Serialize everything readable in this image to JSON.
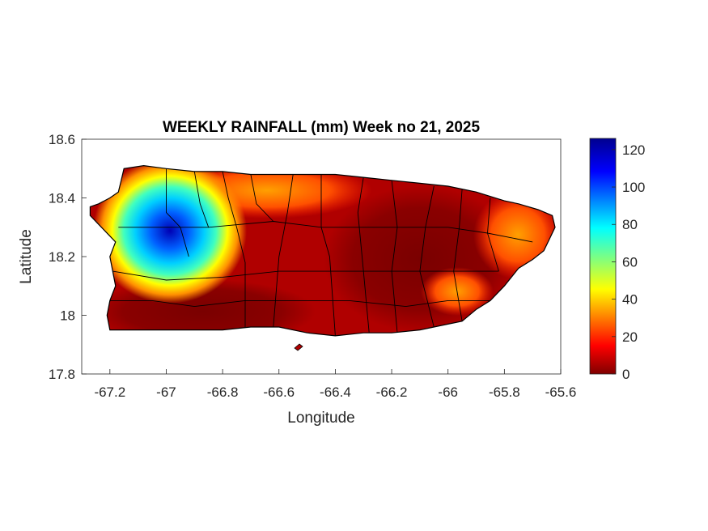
{
  "figure": {
    "title": "WEEKLY RAINFALL (mm) Week no 21, 2025",
    "xlabel": "Longitude",
    "ylabel": "Latitude"
  },
  "map_data": {
    "type": "contour-map",
    "region": "Puerto Rico",
    "quantity": "weekly rainfall (mm)",
    "x_range": [
      -67.3,
      -65.6
    ],
    "y_range": [
      17.8,
      18.6
    ],
    "x_ticks": [
      "-67.2",
      "-67",
      "-66.8",
      "-66.6",
      "-66.4",
      "-66.2",
      "-66",
      "-65.8",
      "-65.6"
    ],
    "y_ticks": [
      "18.6",
      "18.4",
      "18.2",
      "18"
    ],
    "y_tick_bottom": "17.8",
    "colorbar": {
      "range": [
        0,
        126
      ],
      "ticks": [
        "120",
        "100",
        "80",
        "60",
        "40",
        "20",
        "0"
      ],
      "colormap": "jet"
    },
    "coastline": [
      [
        -67.27,
        18.37
      ],
      [
        -67.24,
        18.38
      ],
      [
        -67.2,
        18.4
      ],
      [
        -67.17,
        18.42
      ],
      [
        -67.16,
        18.46
      ],
      [
        -67.15,
        18.5
      ],
      [
        -67.08,
        18.51
      ],
      [
        -67.0,
        18.5
      ],
      [
        -66.9,
        18.49
      ],
      [
        -66.8,
        18.49
      ],
      [
        -66.7,
        18.48
      ],
      [
        -66.6,
        18.48
      ],
      [
        -66.5,
        18.48
      ],
      [
        -66.4,
        18.48
      ],
      [
        -66.3,
        18.47
      ],
      [
        -66.2,
        18.46
      ],
      [
        -66.1,
        18.45
      ],
      [
        -66.0,
        18.44
      ],
      [
        -65.9,
        18.42
      ],
      [
        -65.8,
        18.39
      ],
      [
        -65.75,
        18.38
      ],
      [
        -65.68,
        18.36
      ],
      [
        -65.63,
        18.34
      ],
      [
        -65.62,
        18.3
      ],
      [
        -65.64,
        18.26
      ],
      [
        -65.66,
        18.22
      ],
      [
        -65.7,
        18.19
      ],
      [
        -65.75,
        18.16
      ],
      [
        -65.8,
        18.1
      ],
      [
        -65.85,
        18.05
      ],
      [
        -65.9,
        18.02
      ],
      [
        -65.95,
        17.98
      ],
      [
        -66.0,
        17.97
      ],
      [
        -66.1,
        17.95
      ],
      [
        -66.2,
        17.94
      ],
      [
        -66.3,
        17.94
      ],
      [
        -66.4,
        17.93
      ],
      [
        -66.5,
        17.94
      ],
      [
        -66.6,
        17.96
      ],
      [
        -66.7,
        17.96
      ],
      [
        -66.8,
        17.95
      ],
      [
        -66.9,
        17.95
      ],
      [
        -67.0,
        17.95
      ],
      [
        -67.1,
        17.95
      ],
      [
        -67.2,
        17.95
      ],
      [
        -67.21,
        18.0
      ],
      [
        -67.2,
        18.05
      ],
      [
        -67.18,
        18.1
      ],
      [
        -67.19,
        18.15
      ],
      [
        -67.2,
        18.2
      ],
      [
        -67.18,
        18.25
      ],
      [
        -67.23,
        18.3
      ],
      [
        -67.27,
        18.34
      ]
    ],
    "municipal_boundaries": [
      [
        [
          -67.0,
          18.5
        ],
        [
          -67.0,
          18.35
        ],
        [
          -66.95,
          18.3
        ],
        [
          -66.92,
          18.2
        ]
      ],
      [
        [
          -66.9,
          18.49
        ],
        [
          -66.88,
          18.38
        ],
        [
          -66.85,
          18.3
        ]
      ],
      [
        [
          -66.8,
          18.49
        ],
        [
          -66.78,
          18.4
        ],
        [
          -66.75,
          18.3
        ],
        [
          -66.72,
          18.18
        ],
        [
          -66.72,
          17.96
        ]
      ],
      [
        [
          -66.7,
          18.48
        ],
        [
          -66.68,
          18.38
        ],
        [
          -66.62,
          18.32
        ]
      ],
      [
        [
          -66.55,
          18.48
        ],
        [
          -66.57,
          18.35
        ],
        [
          -66.6,
          18.2
        ],
        [
          -66.62,
          17.96
        ]
      ],
      [
        [
          -66.45,
          18.48
        ],
        [
          -66.45,
          18.3
        ],
        [
          -66.42,
          18.2
        ],
        [
          -66.4,
          17.93
        ]
      ],
      [
        [
          -66.3,
          18.47
        ],
        [
          -66.32,
          18.35
        ],
        [
          -66.3,
          18.15
        ],
        [
          -66.28,
          17.94
        ]
      ],
      [
        [
          -66.2,
          18.46
        ],
        [
          -66.18,
          18.3
        ],
        [
          -66.2,
          18.15
        ],
        [
          -66.18,
          17.94
        ]
      ],
      [
        [
          -66.05,
          18.44
        ],
        [
          -66.08,
          18.3
        ],
        [
          -66.1,
          18.15
        ],
        [
          -66.05,
          17.96
        ]
      ],
      [
        [
          -65.95,
          18.43
        ],
        [
          -65.96,
          18.3
        ],
        [
          -65.98,
          18.15
        ],
        [
          -65.95,
          17.98
        ]
      ],
      [
        [
          -65.85,
          18.4
        ],
        [
          -65.86,
          18.28
        ],
        [
          -65.82,
          18.15
        ]
      ],
      [
        [
          -67.17,
          18.3
        ],
        [
          -67.0,
          18.3
        ],
        [
          -66.85,
          18.3
        ],
        [
          -66.62,
          18.32
        ],
        [
          -66.45,
          18.3
        ],
        [
          -66.32,
          18.3
        ],
        [
          -66.18,
          18.3
        ],
        [
          -66.0,
          18.3
        ],
        [
          -65.86,
          18.28
        ],
        [
          -65.7,
          18.25
        ]
      ],
      [
        [
          -67.19,
          18.15
        ],
        [
          -67.0,
          18.12
        ],
        [
          -66.8,
          18.13
        ],
        [
          -66.6,
          18.15
        ],
        [
          -66.4,
          18.15
        ],
        [
          -66.2,
          18.15
        ],
        [
          -66.0,
          18.15
        ],
        [
          -65.82,
          18.15
        ]
      ],
      [
        [
          -67.2,
          18.05
        ],
        [
          -67.05,
          18.05
        ],
        [
          -66.9,
          18.03
        ],
        [
          -66.72,
          18.05
        ],
        [
          -66.55,
          18.05
        ],
        [
          -66.35,
          18.05
        ],
        [
          -66.15,
          18.03
        ],
        [
          -66.0,
          18.05
        ],
        [
          -65.85,
          18.05
        ]
      ]
    ]
  }
}
